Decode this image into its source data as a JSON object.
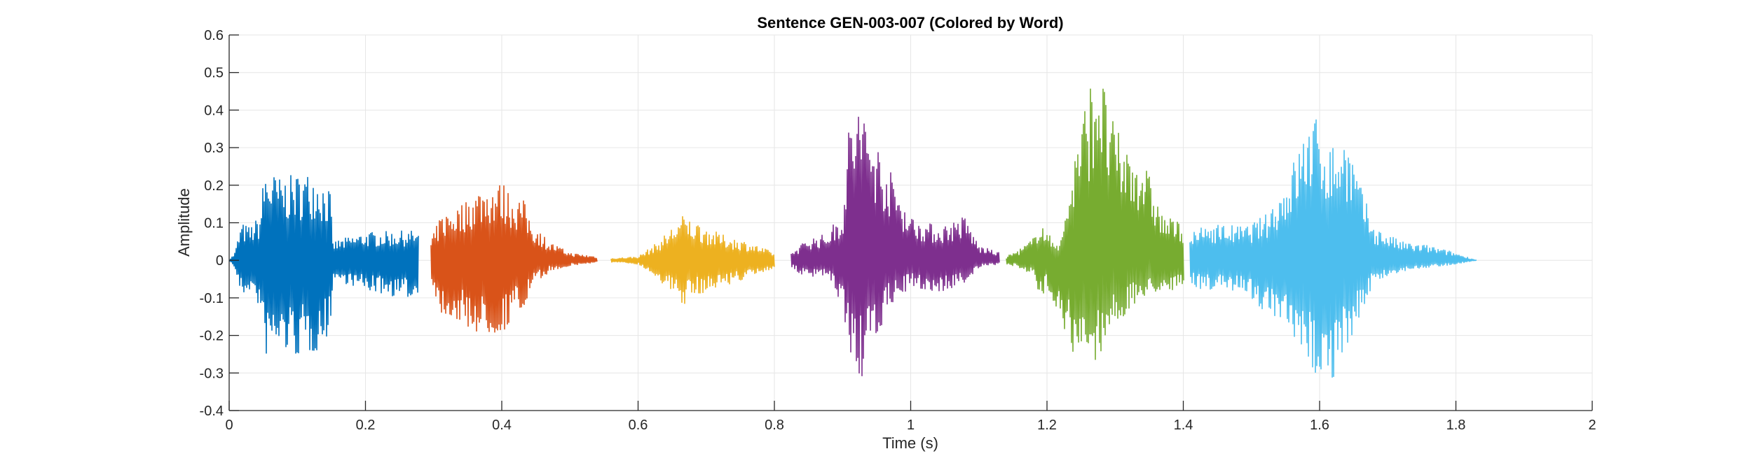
{
  "chart_data": {
    "type": "line",
    "title": "Sentence GEN-003-007 (Colored by Word)",
    "xlabel": "Time (s)",
    "ylabel": "Amplitude",
    "xlim": [
      0,
      2
    ],
    "ylim": [
      -0.4,
      0.6
    ],
    "x_ticks": [
      0,
      0.2,
      0.4,
      0.6,
      0.8,
      1,
      1.2,
      1.4,
      1.6,
      1.8,
      2
    ],
    "y_ticks": [
      -0.4,
      -0.3,
      -0.2,
      -0.1,
      0,
      0.1,
      0.2,
      0.3,
      0.4,
      0.5,
      0.6
    ],
    "x_tick_labels": [
      "0",
      "0.2",
      "0.4",
      "0.6",
      "0.8",
      "1",
      "1.2",
      "1.4",
      "1.6",
      "1.8",
      "2"
    ],
    "y_tick_labels": [
      "-0.4",
      "-0.3",
      "-0.2",
      "-0.1",
      "0",
      "0.1",
      "0.2",
      "0.3",
      "0.4",
      "0.5",
      "0.6"
    ],
    "grid": true,
    "legend": "none",
    "series": [
      {
        "color": "#0072BD",
        "t_start": 0.0,
        "t_end": 0.278,
        "envelope_max": [
          [
            0.0,
            0.0
          ],
          [
            0.008,
            0.02
          ],
          [
            0.018,
            0.1
          ],
          [
            0.03,
            0.09
          ],
          [
            0.045,
            0.12
          ],
          [
            0.052,
            0.25
          ],
          [
            0.075,
            0.22
          ],
          [
            0.1,
            0.23
          ],
          [
            0.125,
            0.24
          ],
          [
            0.148,
            0.19
          ],
          [
            0.152,
            0.05
          ],
          [
            0.2,
            0.075
          ],
          [
            0.25,
            0.078
          ],
          [
            0.278,
            0.08
          ]
        ],
        "envelope_min": [
          [
            0.0,
            0.0
          ],
          [
            0.008,
            -0.02
          ],
          [
            0.018,
            -0.1
          ],
          [
            0.03,
            -0.08
          ],
          [
            0.045,
            -0.13
          ],
          [
            0.052,
            -0.26
          ],
          [
            0.075,
            -0.24
          ],
          [
            0.1,
            -0.26
          ],
          [
            0.125,
            -0.25
          ],
          [
            0.148,
            -0.2
          ],
          [
            0.152,
            -0.05
          ],
          [
            0.2,
            -0.08
          ],
          [
            0.25,
            -0.1
          ],
          [
            0.278,
            -0.1
          ]
        ]
      },
      {
        "color": "#D95319",
        "t_start": 0.296,
        "t_end": 0.54,
        "envelope_max": [
          [
            0.296,
            0.05
          ],
          [
            0.31,
            0.12
          ],
          [
            0.34,
            0.15
          ],
          [
            0.37,
            0.2
          ],
          [
            0.4,
            0.21
          ],
          [
            0.42,
            0.17
          ],
          [
            0.43,
            0.17
          ],
          [
            0.445,
            0.1
          ],
          [
            0.47,
            0.05
          ],
          [
            0.5,
            0.02
          ],
          [
            0.54,
            0.01
          ]
        ],
        "envelope_min": [
          [
            0.296,
            -0.05
          ],
          [
            0.31,
            -0.14
          ],
          [
            0.34,
            -0.17
          ],
          [
            0.37,
            -0.2
          ],
          [
            0.4,
            -0.2
          ],
          [
            0.42,
            -0.14
          ],
          [
            0.43,
            -0.15
          ],
          [
            0.445,
            -0.07
          ],
          [
            0.47,
            -0.03
          ],
          [
            0.5,
            -0.015
          ],
          [
            0.54,
            -0.005
          ]
        ]
      },
      {
        "color": "#EDB120",
        "t_start": 0.56,
        "t_end": 0.8,
        "envelope_max": [
          [
            0.56,
            0.005
          ],
          [
            0.6,
            0.01
          ],
          [
            0.63,
            0.05
          ],
          [
            0.665,
            0.12
          ],
          [
            0.69,
            0.1
          ],
          [
            0.72,
            0.07
          ],
          [
            0.76,
            0.05
          ],
          [
            0.8,
            0.02
          ]
        ],
        "envelope_min": [
          [
            0.56,
            -0.005
          ],
          [
            0.6,
            -0.01
          ],
          [
            0.63,
            -0.05
          ],
          [
            0.665,
            -0.12
          ],
          [
            0.69,
            -0.09
          ],
          [
            0.72,
            -0.07
          ],
          [
            0.76,
            -0.05
          ],
          [
            0.8,
            -0.02
          ]
        ]
      },
      {
        "color": "#7E2F8E",
        "t_start": 0.825,
        "t_end": 1.13,
        "envelope_max": [
          [
            0.825,
            0.02
          ],
          [
            0.85,
            0.06
          ],
          [
            0.875,
            0.07
          ],
          [
            0.9,
            0.13
          ],
          [
            0.91,
            0.38
          ],
          [
            0.925,
            0.43
          ],
          [
            0.945,
            0.34
          ],
          [
            0.97,
            0.24
          ],
          [
            1.0,
            0.12
          ],
          [
            1.04,
            0.09
          ],
          [
            1.08,
            0.12
          ],
          [
            1.1,
            0.04
          ],
          [
            1.13,
            0.02
          ]
        ],
        "envelope_min": [
          [
            0.825,
            -0.02
          ],
          [
            0.85,
            -0.05
          ],
          [
            0.875,
            -0.04
          ],
          [
            0.9,
            -0.12
          ],
          [
            0.91,
            -0.24
          ],
          [
            0.925,
            -0.33
          ],
          [
            0.945,
            -0.24
          ],
          [
            0.97,
            -0.12
          ],
          [
            1.0,
            -0.07
          ],
          [
            1.04,
            -0.09
          ],
          [
            1.08,
            -0.06
          ],
          [
            1.1,
            -0.02
          ],
          [
            1.13,
            -0.01
          ]
        ]
      },
      {
        "color": "#77AC30",
        "t_start": 1.14,
        "t_end": 1.4,
        "envelope_max": [
          [
            1.14,
            0.01
          ],
          [
            1.16,
            0.03
          ],
          [
            1.18,
            0.06
          ],
          [
            1.19,
            0.12
          ],
          [
            1.2,
            0.07
          ],
          [
            1.22,
            0.05
          ],
          [
            1.245,
            0.34
          ],
          [
            1.26,
            0.45
          ],
          [
            1.275,
            0.57
          ],
          [
            1.29,
            0.4
          ],
          [
            1.31,
            0.32
          ],
          [
            1.34,
            0.28
          ],
          [
            1.37,
            0.12
          ],
          [
            1.4,
            0.1
          ]
        ],
        "envelope_min": [
          [
            1.14,
            -0.01
          ],
          [
            1.16,
            -0.02
          ],
          [
            1.18,
            -0.04
          ],
          [
            1.19,
            -0.12
          ],
          [
            1.2,
            -0.07
          ],
          [
            1.22,
            -0.15
          ],
          [
            1.245,
            -0.3
          ],
          [
            1.26,
            -0.29
          ],
          [
            1.275,
            -0.26
          ],
          [
            1.29,
            -0.2
          ],
          [
            1.31,
            -0.16
          ],
          [
            1.34,
            -0.1
          ],
          [
            1.37,
            -0.08
          ],
          [
            1.4,
            -0.08
          ]
        ]
      },
      {
        "color": "#4DBEEE",
        "t_start": 1.41,
        "t_end": 1.83,
        "envelope_max": [
          [
            1.41,
            0.07
          ],
          [
            1.44,
            0.1
          ],
          [
            1.49,
            0.09
          ],
          [
            1.52,
            0.12
          ],
          [
            1.55,
            0.21
          ],
          [
            1.57,
            0.31
          ],
          [
            1.59,
            0.4
          ],
          [
            1.615,
            0.31
          ],
          [
            1.64,
            0.34
          ],
          [
            1.66,
            0.2
          ],
          [
            1.68,
            0.09
          ],
          [
            1.72,
            0.05
          ],
          [
            1.76,
            0.04
          ],
          [
            1.8,
            0.02
          ],
          [
            1.83,
            0.0
          ]
        ],
        "envelope_min": [
          [
            1.41,
            -0.07
          ],
          [
            1.44,
            -0.08
          ],
          [
            1.49,
            -0.08
          ],
          [
            1.52,
            -0.14
          ],
          [
            1.55,
            -0.19
          ],
          [
            1.57,
            -0.26
          ],
          [
            1.59,
            -0.3
          ],
          [
            1.615,
            -0.33
          ],
          [
            1.64,
            -0.25
          ],
          [
            1.66,
            -0.14
          ],
          [
            1.68,
            -0.06
          ],
          [
            1.72,
            -0.03
          ],
          [
            1.76,
            -0.02
          ],
          [
            1.8,
            -0.01
          ],
          [
            1.83,
            0.0
          ]
        ]
      }
    ]
  }
}
